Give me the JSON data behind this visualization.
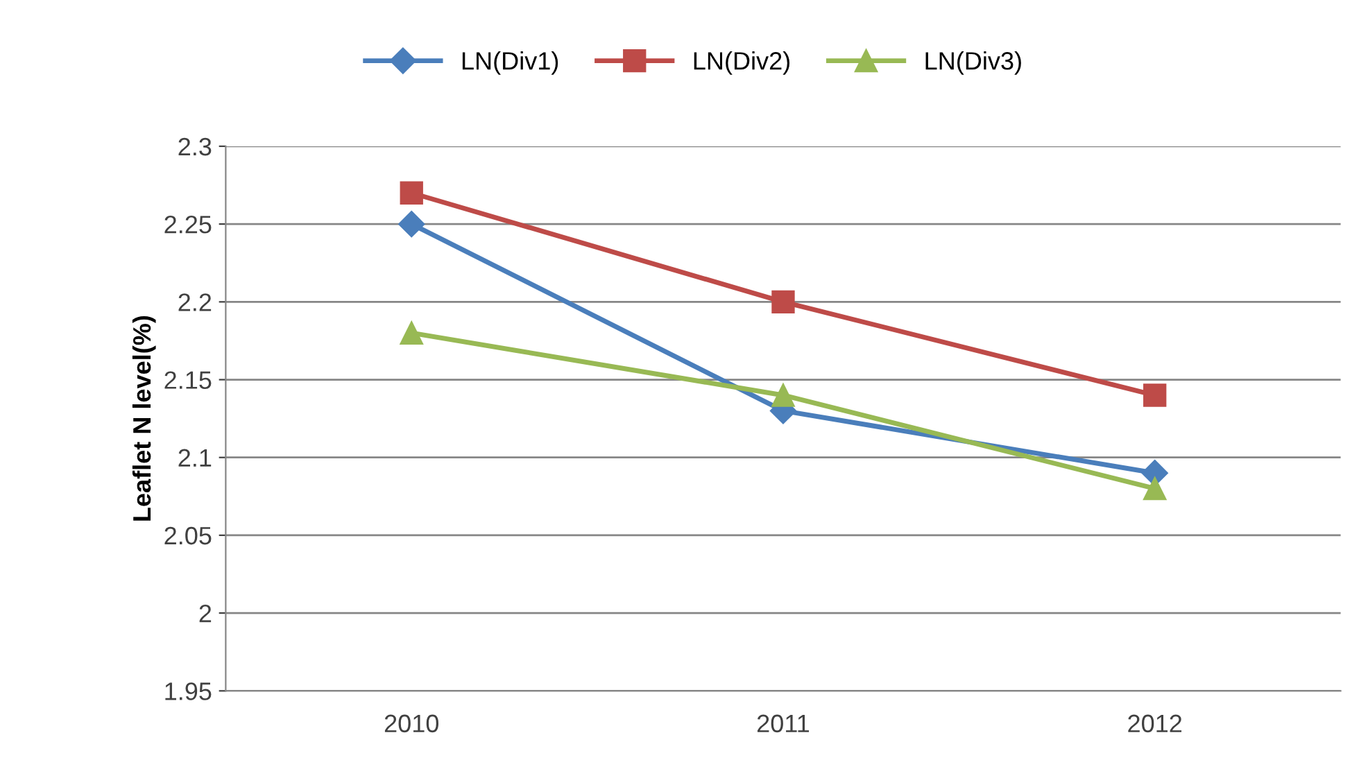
{
  "chart_data": {
    "type": "line",
    "ylabel": "Leaflet N level(%)",
    "categories": [
      "2010",
      "2011",
      "2012"
    ],
    "series": [
      {
        "name": "LN(Div1)",
        "color": "#4a7ebb",
        "marker": "diamond",
        "values": [
          2.25,
          2.13,
          2.09
        ]
      },
      {
        "name": "LN(Div2)",
        "color": "#be4b48",
        "marker": "square",
        "values": [
          2.27,
          2.2,
          2.14
        ]
      },
      {
        "name": "LN(Div3)",
        "color": "#98b954",
        "marker": "triangle",
        "values": [
          2.18,
          2.14,
          2.08
        ]
      }
    ],
    "ylim": [
      1.95,
      2.3
    ],
    "yticks": [
      1.95,
      2,
      2.05,
      2.1,
      2.15,
      2.2,
      2.25,
      2.3
    ],
    "grid": "y",
    "legend": "top",
    "line_style": "solid"
  }
}
